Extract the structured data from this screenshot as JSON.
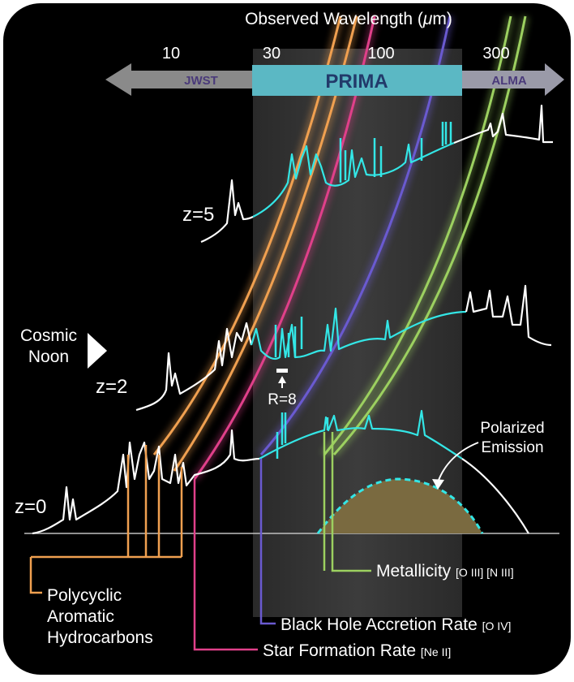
{
  "axis": {
    "title": "Observed Wavelength (",
    "title_mu": "μ",
    "title_unit": "m)",
    "ticks": [
      "10",
      "30",
      "100",
      "300"
    ]
  },
  "instruments": {
    "jwst": "JWST",
    "prima": "PRIMA",
    "alma": "ALMA"
  },
  "redshifts": {
    "z5": "z=5",
    "z2": "z=2",
    "z0": "z=0"
  },
  "cosmic_noon": {
    "line1": "Cosmic",
    "line2": "Noon"
  },
  "resolution_label": "R=8",
  "polarized": {
    "line1": "Polarized",
    "line2": "Emission"
  },
  "tracers": {
    "pah_line1": "Polycyclic",
    "pah_line2": "Aromatic",
    "pah_line3": "Hydrocarbons",
    "sfr": "Star Formation Rate",
    "sfr_lines": "[Ne II]",
    "bh": "Black Hole Accretion Rate",
    "bh_lines": "[O IV]",
    "metal": "Metallicity",
    "metal_lines": "[O III] [N III]"
  },
  "colors": {
    "background": "#000000",
    "prima_band": "#5bb8c4",
    "prima_highlight": "#3a3a3a",
    "spectrum_in_band": "#33e6e6",
    "spectrum_out_band": "#ffffff",
    "pah": "#f0a050",
    "sfr": "#e0408a",
    "bh": "#6a5ad0",
    "metal": "#9cd060",
    "polarized_fill": "#7a6a40",
    "jwst_arrow": "#8a8a8a",
    "alma_arrow": "#9a9aa8"
  }
}
